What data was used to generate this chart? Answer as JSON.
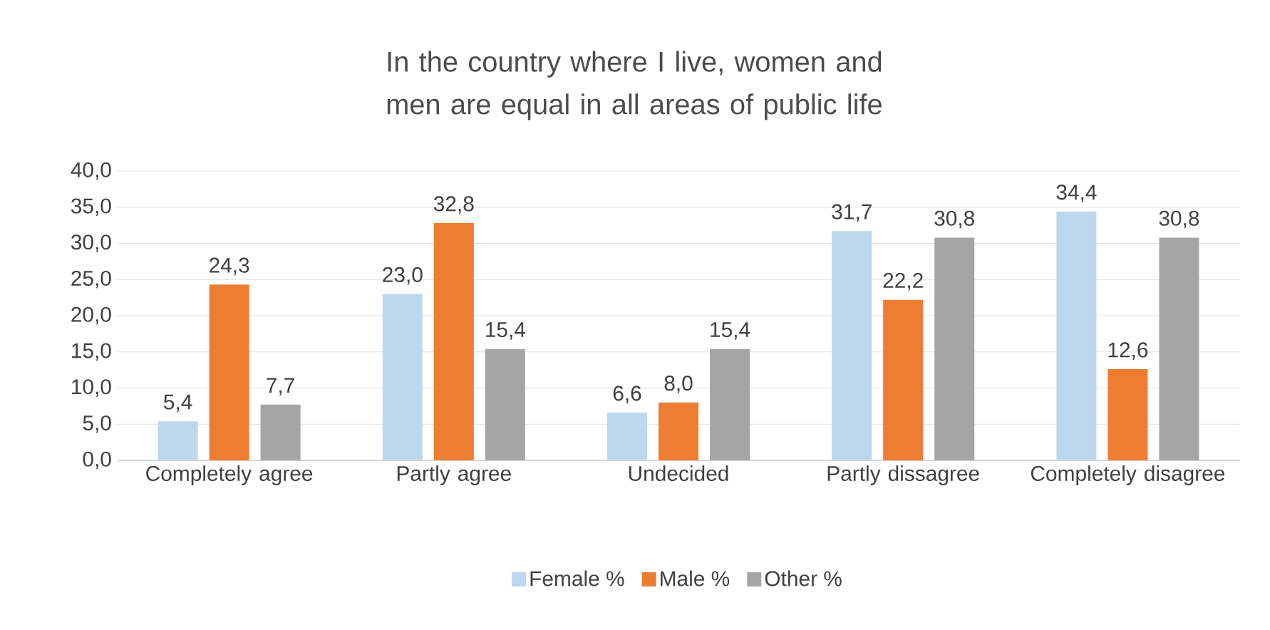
{
  "chart_data": {
    "type": "bar",
    "title": "In the country where I live, women and men are equal in all areas of public life",
    "categories": [
      "Completely agree",
      "Partly agree",
      "Undecided",
      "Partly dissagree",
      "Completely disagree"
    ],
    "series": [
      {
        "name": "Female %",
        "color": "#bdd7ee",
        "values": [
          5.4,
          23.0,
          6.6,
          31.7,
          34.4
        ],
        "value_labels": [
          "5,4",
          "23,0",
          "6,6",
          "31,7",
          "34,4"
        ]
      },
      {
        "name": "Male %",
        "color": "#ed7d31",
        "values": [
          24.3,
          32.8,
          8.0,
          22.2,
          12.6
        ],
        "value_labels": [
          "24,3",
          "32,8",
          "8,0",
          "22,2",
          "12,6"
        ]
      },
      {
        "name": "Other %",
        "color": "#a5a5a5",
        "values": [
          7.7,
          15.4,
          15.4,
          30.8,
          30.8
        ],
        "value_labels": [
          "7,7",
          "15,4",
          "15,4",
          "30,8",
          "30,8"
        ]
      }
    ],
    "ylim": [
      0,
      40
    ],
    "yticks": [
      {
        "value": 0,
        "label": "0,0"
      },
      {
        "value": 5,
        "label": "5,0"
      },
      {
        "value": 10,
        "label": "10,0"
      },
      {
        "value": 15,
        "label": "15,0"
      },
      {
        "value": 20,
        "label": "20,0"
      },
      {
        "value": 25,
        "label": "25,0"
      },
      {
        "value": 30,
        "label": "30,0"
      },
      {
        "value": 35,
        "label": "35,0"
      },
      {
        "value": 40,
        "label": "40,0"
      }
    ],
    "grid": "y",
    "legend": "bottom"
  }
}
